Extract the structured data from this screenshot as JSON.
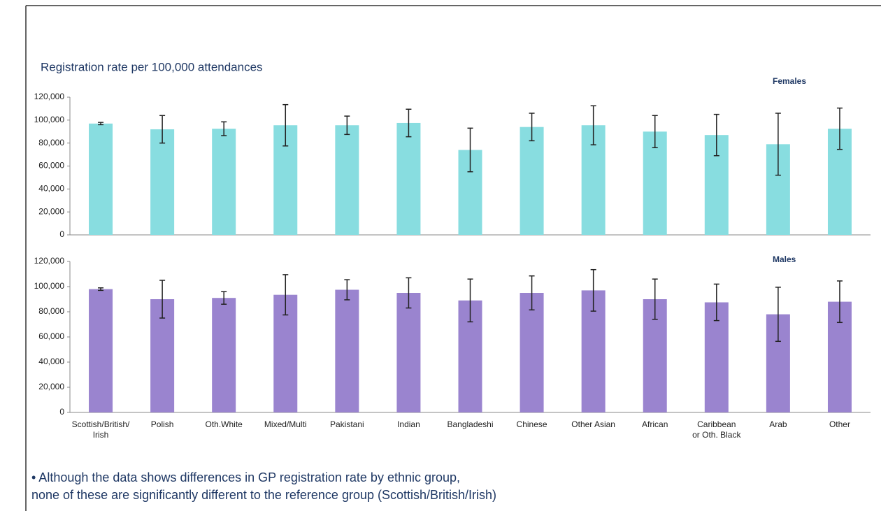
{
  "title": "Registration rate per 100,000 attendances",
  "note": [
    "• Although the data shows differences in GP registration rate by ethnic group,",
    "none of these are significantly different to the reference group (Scottish/British/Irish)"
  ],
  "chart_data": {
    "type": "bar",
    "categories": [
      "Scottish/British/\nIrish",
      "Polish",
      "Oth.White",
      "Mixed/Multi",
      "Pakistani",
      "Indian",
      "Bangladeshi",
      "Chinese",
      "Other Asian",
      "African",
      "Caribbean\nor Oth. Black",
      "Arab",
      "Other"
    ],
    "ylim": [
      0,
      120000
    ],
    "yticks": [
      0,
      {
        "value": 20000,
        "label": "20,000"
      },
      {
        "value": 40000,
        "label": "40,000"
      },
      {
        "value": 60000,
        "label": "60,000"
      },
      {
        "value": 80000,
        "label": "80,000"
      },
      {
        "value": 100000,
        "label": "100,000"
      },
      {
        "value": 120000,
        "label": "120,000"
      }
    ],
    "series": [
      {
        "name": "Females",
        "color": "#88dde0",
        "values": [
          97000,
          92000,
          92500,
          95500,
          95500,
          97500,
          74000,
          94000,
          95500,
          90000,
          87000,
          79000,
          92500
        ],
        "errors": [
          1000,
          12000,
          6000,
          18000,
          8000,
          12000,
          19000,
          12000,
          17000,
          14000,
          18000,
          27000,
          18000
        ]
      },
      {
        "name": "Males",
        "color": "#9a84cf",
        "values": [
          98000,
          90000,
          91000,
          93500,
          97500,
          95000,
          89000,
          95000,
          97000,
          90000,
          87500,
          78000,
          88000
        ],
        "errors": [
          1000,
          15000,
          5000,
          16000,
          8000,
          12000,
          17000,
          13500,
          16500,
          16000,
          14500,
          21500,
          16500
        ]
      }
    ]
  }
}
